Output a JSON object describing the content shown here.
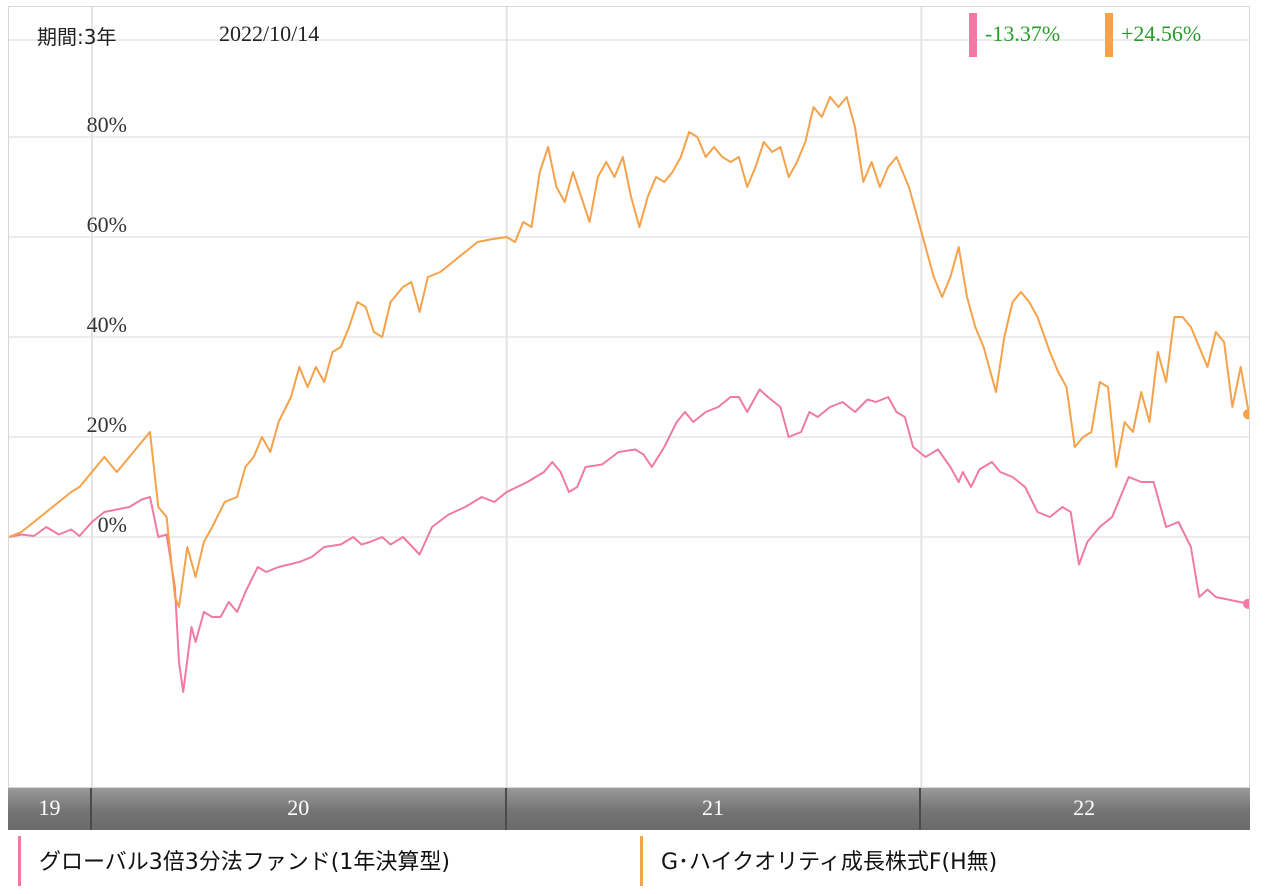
{
  "header": {
    "period": "期間:3年",
    "date": "2022/10/14"
  },
  "returns": [
    {
      "label": "-13.37%",
      "color": "#f07aa5"
    },
    {
      "label": "+24.56%",
      "color": "#f5a24a"
    }
  ],
  "chart_data": {
    "type": "line",
    "title": "",
    "xlabel": "",
    "ylabel": "",
    "ylim": [
      -50,
      100
    ],
    "x_range": [
      2019.8,
      2022.79
    ],
    "yticks": [
      {
        "value": 80,
        "label": "80%"
      },
      {
        "value": 60,
        "label": "60%"
      },
      {
        "value": 40,
        "label": "40%"
      },
      {
        "value": 20,
        "label": "20%"
      },
      {
        "value": 0,
        "label": "0%"
      }
    ],
    "xticks": [
      {
        "start": 2019.8,
        "end": 2020.0,
        "label": "19"
      },
      {
        "start": 2020.0,
        "end": 2021.0,
        "label": "20"
      },
      {
        "start": 2021.0,
        "end": 2022.0,
        "label": "21"
      },
      {
        "start": 2022.0,
        "end": 2022.79,
        "label": "22"
      }
    ],
    "grid": true,
    "series": [
      {
        "name": "グローバル3倍3分法ファンド(1年決算型)",
        "color": "#f07aa5",
        "end_label": "-13.37%",
        "points": [
          [
            2019.8,
            0
          ],
          [
            2019.83,
            0.5
          ],
          [
            2019.86,
            0.2
          ],
          [
            2019.89,
            2
          ],
          [
            2019.92,
            0.5
          ],
          [
            2019.95,
            1.5
          ],
          [
            2019.97,
            0.2
          ],
          [
            2020.0,
            3
          ],
          [
            2020.03,
            5
          ],
          [
            2020.06,
            5.5
          ],
          [
            2020.09,
            6
          ],
          [
            2020.12,
            7.5
          ],
          [
            2020.14,
            8
          ],
          [
            2020.16,
            0
          ],
          [
            2020.18,
            0.5
          ],
          [
            2020.2,
            -10
          ],
          [
            2020.21,
            -25
          ],
          [
            2020.22,
            -31
          ],
          [
            2020.24,
            -18
          ],
          [
            2020.25,
            -21
          ],
          [
            2020.27,
            -15
          ],
          [
            2020.29,
            -16
          ],
          [
            2020.31,
            -16
          ],
          [
            2020.33,
            -13
          ],
          [
            2020.35,
            -15
          ],
          [
            2020.37,
            -11
          ],
          [
            2020.4,
            -6
          ],
          [
            2020.42,
            -7
          ],
          [
            2020.45,
            -6
          ],
          [
            2020.5,
            -5
          ],
          [
            2020.53,
            -4
          ],
          [
            2020.56,
            -2
          ],
          [
            2020.6,
            -1.5
          ],
          [
            2020.63,
            0
          ],
          [
            2020.65,
            -1.5
          ],
          [
            2020.67,
            -1
          ],
          [
            2020.7,
            0
          ],
          [
            2020.72,
            -1.5
          ],
          [
            2020.75,
            0
          ],
          [
            2020.79,
            -3.5
          ],
          [
            2020.82,
            2
          ],
          [
            2020.86,
            4.5
          ],
          [
            2020.9,
            6
          ],
          [
            2020.94,
            8
          ],
          [
            2020.97,
            7
          ],
          [
            2021.0,
            9
          ],
          [
            2021.05,
            11
          ],
          [
            2021.09,
            13
          ],
          [
            2021.11,
            15
          ],
          [
            2021.13,
            13
          ],
          [
            2021.15,
            9
          ],
          [
            2021.17,
            10
          ],
          [
            2021.19,
            14
          ],
          [
            2021.23,
            14.5
          ],
          [
            2021.27,
            17
          ],
          [
            2021.31,
            17.5
          ],
          [
            2021.33,
            16.5
          ],
          [
            2021.35,
            14
          ],
          [
            2021.38,
            18
          ],
          [
            2021.41,
            23
          ],
          [
            2021.43,
            25
          ],
          [
            2021.45,
            23
          ],
          [
            2021.48,
            25
          ],
          [
            2021.51,
            26
          ],
          [
            2021.54,
            28
          ],
          [
            2021.56,
            28
          ],
          [
            2021.58,
            25
          ],
          [
            2021.61,
            29.5
          ],
          [
            2021.63,
            28
          ],
          [
            2021.66,
            26
          ],
          [
            2021.68,
            20
          ],
          [
            2021.71,
            21
          ],
          [
            2021.73,
            25
          ],
          [
            2021.75,
            24
          ],
          [
            2021.78,
            26
          ],
          [
            2021.81,
            27
          ],
          [
            2021.84,
            25
          ],
          [
            2021.87,
            27.5
          ],
          [
            2021.89,
            27
          ],
          [
            2021.92,
            28
          ],
          [
            2021.94,
            25
          ],
          [
            2021.96,
            24
          ],
          [
            2021.98,
            18
          ],
          [
            2022.01,
            16
          ],
          [
            2022.04,
            17.5
          ],
          [
            2022.07,
            14
          ],
          [
            2022.09,
            11
          ],
          [
            2022.1,
            13
          ],
          [
            2022.12,
            10
          ],
          [
            2022.14,
            13.5
          ],
          [
            2022.17,
            15
          ],
          [
            2022.19,
            13
          ],
          [
            2022.22,
            12
          ],
          [
            2022.25,
            10
          ],
          [
            2022.28,
            5
          ],
          [
            2022.31,
            4
          ],
          [
            2022.34,
            6
          ],
          [
            2022.36,
            5
          ],
          [
            2022.38,
            -5.5
          ],
          [
            2022.4,
            -1
          ],
          [
            2022.43,
            2
          ],
          [
            2022.46,
            4
          ],
          [
            2022.48,
            8
          ],
          [
            2022.5,
            12
          ],
          [
            2022.53,
            11
          ],
          [
            2022.56,
            11
          ],
          [
            2022.59,
            2
          ],
          [
            2022.62,
            3
          ],
          [
            2022.65,
            -2
          ],
          [
            2022.67,
            -12
          ],
          [
            2022.69,
            -10.5
          ],
          [
            2022.71,
            -12
          ],
          [
            2022.79,
            -13.37
          ]
        ]
      },
      {
        "name": "G･ハイクオリティ成長株式F(H無)",
        "color": "#f5a24a",
        "end_label": "+24.56%",
        "points": [
          [
            2019.8,
            0
          ],
          [
            2019.83,
            1
          ],
          [
            2019.86,
            3
          ],
          [
            2019.89,
            5
          ],
          [
            2019.92,
            7
          ],
          [
            2019.95,
            9
          ],
          [
            2019.97,
            10
          ],
          [
            2020.0,
            13
          ],
          [
            2020.03,
            16
          ],
          [
            2020.06,
            13
          ],
          [
            2020.09,
            16
          ],
          [
            2020.12,
            19
          ],
          [
            2020.14,
            21
          ],
          [
            2020.16,
            6
          ],
          [
            2020.18,
            4
          ],
          [
            2020.2,
            -12
          ],
          [
            2020.21,
            -14
          ],
          [
            2020.23,
            -2
          ],
          [
            2020.25,
            -8
          ],
          [
            2020.27,
            -1
          ],
          [
            2020.29,
            2
          ],
          [
            2020.32,
            7
          ],
          [
            2020.35,
            8
          ],
          [
            2020.37,
            14
          ],
          [
            2020.39,
            16
          ],
          [
            2020.41,
            20
          ],
          [
            2020.43,
            17
          ],
          [
            2020.45,
            23
          ],
          [
            2020.48,
            28
          ],
          [
            2020.5,
            34
          ],
          [
            2020.52,
            30
          ],
          [
            2020.54,
            34
          ],
          [
            2020.56,
            31
          ],
          [
            2020.58,
            37
          ],
          [
            2020.6,
            38
          ],
          [
            2020.62,
            42
          ],
          [
            2020.64,
            47
          ],
          [
            2020.66,
            46
          ],
          [
            2020.68,
            41
          ],
          [
            2020.7,
            40
          ],
          [
            2020.72,
            47
          ],
          [
            2020.75,
            50
          ],
          [
            2020.77,
            51
          ],
          [
            2020.79,
            45
          ],
          [
            2020.81,
            52
          ],
          [
            2020.84,
            53
          ],
          [
            2020.87,
            55
          ],
          [
            2020.9,
            57
          ],
          [
            2020.93,
            59
          ],
          [
            2020.96,
            59.5
          ],
          [
            2021.0,
            60
          ],
          [
            2021.02,
            59
          ],
          [
            2021.04,
            63
          ],
          [
            2021.06,
            62
          ],
          [
            2021.08,
            73
          ],
          [
            2021.1,
            78
          ],
          [
            2021.12,
            70
          ],
          [
            2021.14,
            67
          ],
          [
            2021.16,
            73
          ],
          [
            2021.18,
            68
          ],
          [
            2021.2,
            63
          ],
          [
            2021.22,
            72
          ],
          [
            2021.24,
            75
          ],
          [
            2021.26,
            72
          ],
          [
            2021.28,
            76
          ],
          [
            2021.3,
            68
          ],
          [
            2021.32,
            62
          ],
          [
            2021.34,
            68
          ],
          [
            2021.36,
            72
          ],
          [
            2021.38,
            71
          ],
          [
            2021.4,
            73
          ],
          [
            2021.42,
            76
          ],
          [
            2021.44,
            81
          ],
          [
            2021.46,
            80
          ],
          [
            2021.48,
            76
          ],
          [
            2021.5,
            78
          ],
          [
            2021.52,
            76
          ],
          [
            2021.54,
            75
          ],
          [
            2021.56,
            76
          ],
          [
            2021.58,
            70
          ],
          [
            2021.6,
            74
          ],
          [
            2021.62,
            79
          ],
          [
            2021.64,
            77
          ],
          [
            2021.66,
            78
          ],
          [
            2021.68,
            72
          ],
          [
            2021.7,
            75
          ],
          [
            2021.72,
            79
          ],
          [
            2021.74,
            86
          ],
          [
            2021.76,
            84
          ],
          [
            2021.78,
            88
          ],
          [
            2021.8,
            86
          ],
          [
            2021.82,
            88
          ],
          [
            2021.84,
            82
          ],
          [
            2021.86,
            71
          ],
          [
            2021.88,
            75
          ],
          [
            2021.9,
            70
          ],
          [
            2021.92,
            74
          ],
          [
            2021.94,
            76
          ],
          [
            2021.97,
            70
          ],
          [
            2022.0,
            61
          ],
          [
            2022.03,
            52
          ],
          [
            2022.05,
            48
          ],
          [
            2022.07,
            52
          ],
          [
            2022.09,
            58
          ],
          [
            2022.11,
            48
          ],
          [
            2022.13,
            42
          ],
          [
            2022.15,
            38
          ],
          [
            2022.18,
            29
          ],
          [
            2022.2,
            40
          ],
          [
            2022.22,
            47
          ],
          [
            2022.24,
            49
          ],
          [
            2022.26,
            47
          ],
          [
            2022.28,
            44
          ],
          [
            2022.31,
            37
          ],
          [
            2022.33,
            33
          ],
          [
            2022.35,
            30
          ],
          [
            2022.37,
            18
          ],
          [
            2022.39,
            20
          ],
          [
            2022.41,
            21
          ],
          [
            2022.43,
            31
          ],
          [
            2022.45,
            30
          ],
          [
            2022.47,
            14
          ],
          [
            2022.49,
            23
          ],
          [
            2022.51,
            21
          ],
          [
            2022.53,
            29
          ],
          [
            2022.55,
            23
          ],
          [
            2022.57,
            37
          ],
          [
            2022.59,
            31
          ],
          [
            2022.61,
            44
          ],
          [
            2022.63,
            44
          ],
          [
            2022.65,
            42
          ],
          [
            2022.67,
            38
          ],
          [
            2022.69,
            34
          ],
          [
            2022.71,
            41
          ],
          [
            2022.73,
            39
          ],
          [
            2022.75,
            26
          ],
          [
            2022.77,
            34
          ],
          [
            2022.79,
            24.56
          ]
        ]
      }
    ]
  }
}
